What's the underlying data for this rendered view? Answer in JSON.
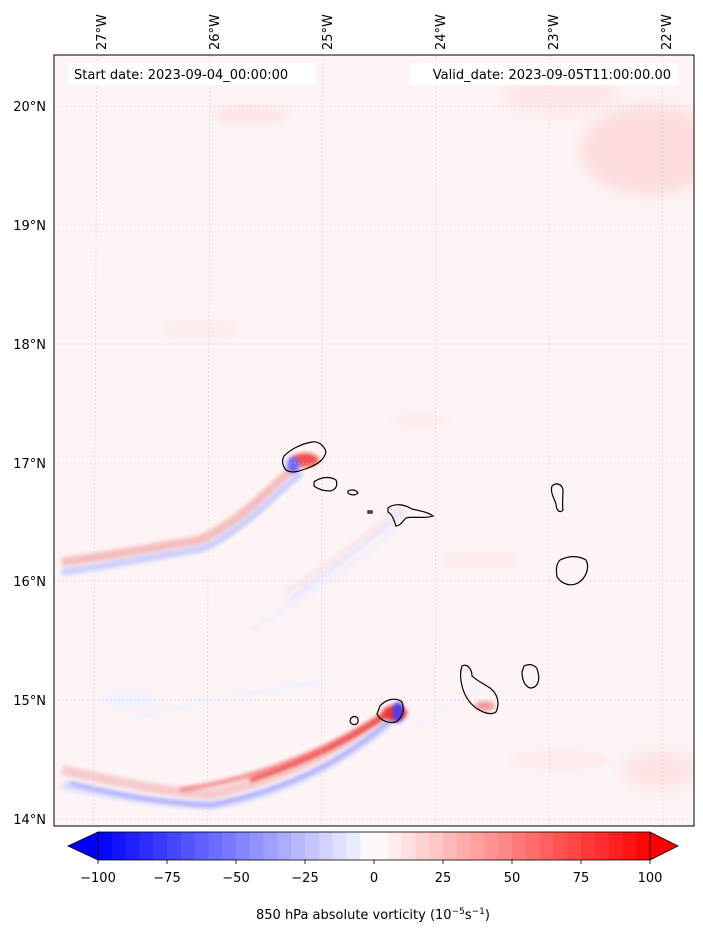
{
  "header": {
    "start_date": "Start date: 2023-09-04_00:00:00",
    "valid_date": "Valid_date: 2023-09-05T11:00:00.00"
  },
  "longitude_labels": [
    "27°W",
    "26°W",
    "25°W",
    "24°W",
    "23°W",
    "22°W"
  ],
  "latitude_labels": [
    "20°N",
    "19°N",
    "18°N",
    "17°N",
    "16°N",
    "15°N",
    "14°N"
  ],
  "colorbar": {
    "ticks": [
      "−100",
      "−75",
      "−50",
      "−25",
      "0",
      "25",
      "50",
      "75",
      "100"
    ],
    "label": "850 hPa absolute vorticity (10",
    "label_exp1": "−5",
    "label_mid": "s",
    "label_exp2": "−1",
    "label_end": ")",
    "min": -100,
    "max": 100,
    "step": 5,
    "colors": {
      "negative": "#0000ff",
      "zero": "#ffffff",
      "positive": "#ff0000"
    }
  },
  "map": {
    "background": "#fdf5f5",
    "lon_range": [
      -27.3,
      -21.8
    ],
    "lat_range": [
      13.95,
      20.4
    ]
  }
}
